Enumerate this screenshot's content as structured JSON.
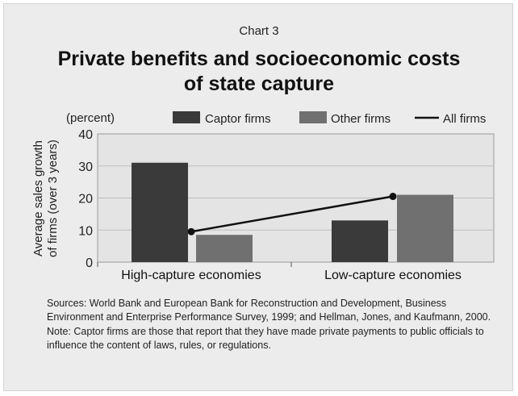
{
  "header": {
    "chart_number": "Chart 3",
    "title_line1": "Private benefits and socioeconomic costs",
    "title_line2": "of state capture"
  },
  "chart_data": {
    "type": "bar",
    "title": "Private benefits and socioeconomic costs of state capture",
    "unit_label": "(percent)",
    "ylabel_line1": "Average sales growth",
    "ylabel_line2": "of firms (over 3 years)",
    "categories": [
      "High-capture economies",
      "Low-capture economies"
    ],
    "series": [
      {
        "name": "Captor firms",
        "type": "bar",
        "values": [
          31,
          13
        ],
        "color": "#3a3a3a"
      },
      {
        "name": "Other firms",
        "type": "bar",
        "values": [
          8.5,
          21
        ],
        "color": "#707070"
      },
      {
        "name": "All firms",
        "type": "line",
        "values": [
          9.5,
          20.5
        ],
        "color": "#111111"
      }
    ],
    "ylim": [
      0,
      40
    ],
    "yticks": [
      0,
      10,
      20,
      30,
      40
    ],
    "grid": true,
    "legend_position": "top"
  },
  "footer": {
    "sources": "Sources: World Bank and European Bank for Reconstruction and Development, Business Environment and Enterprise Performance Survey, 1999; and Hellman, Jones, and Kaufmann, 2000.",
    "note": "Note: Captor firms are those that report that they have made private payments to public officials to influence the content of laws, rules, or regulations."
  }
}
